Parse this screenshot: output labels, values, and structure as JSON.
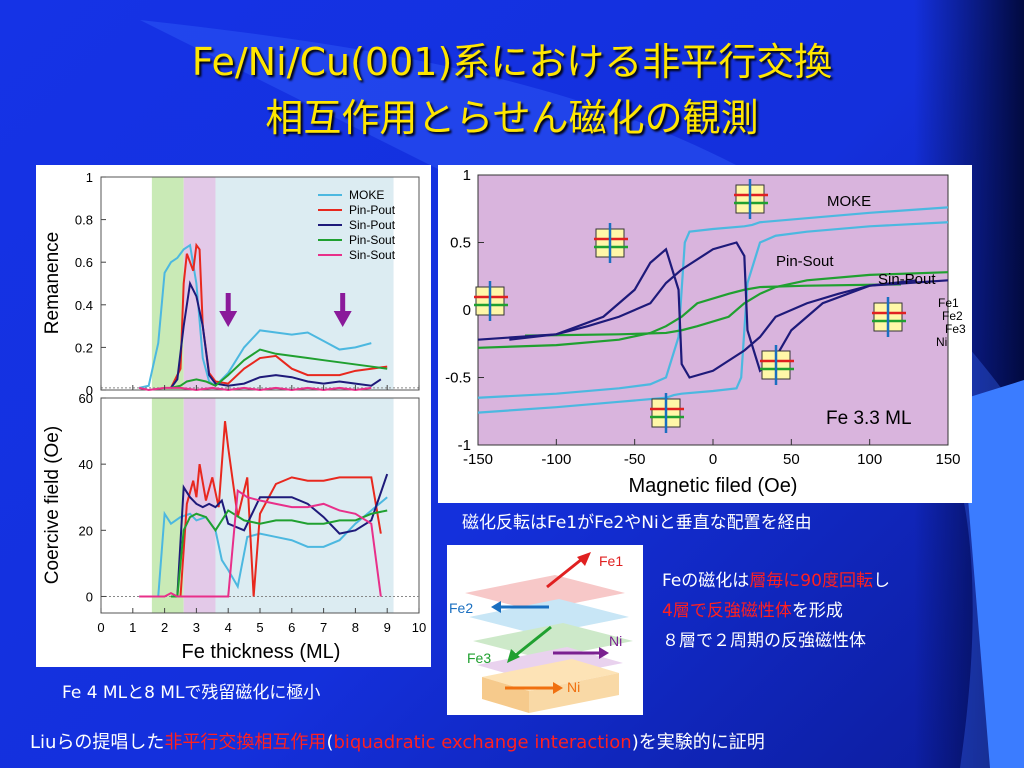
{
  "title": {
    "line1": "Fe/Ni/Cu(001)系における非平行交換",
    "line2": "相互作用とらせん磁化の観測"
  },
  "captions": {
    "left": "Fe 4 MLと8 MLで残留磁化に極小",
    "right_top": "磁化反転はFe1がFe2やNiと垂直な配置を経由",
    "fe_l1_a": "Feの磁化は",
    "fe_l1_b": "層毎に90度回転",
    "fe_l1_c": "し",
    "fe_l2_a": "4層で反強磁性体",
    "fe_l2_b": "を形成",
    "fe_l3": "８層で２周期の反強磁性体",
    "bottom_a": "Liuらの提唱した",
    "bottom_b": "非平行交換相互作用",
    "bottom_c": "(",
    "bottom_d": "biquadratic exchange interaction",
    "bottom_e": ")を実験的に証明"
  },
  "colors": {
    "MOKE": "#4cb8e0",
    "Pin-Pout": "#e8281e",
    "Sin-Pout": "#1e1a7a",
    "Pin-Sout": "#20a030",
    "Sin-Sout": "#e8308a",
    "accent_title": "#ffe600",
    "highlight": "#ff2020"
  },
  "chart_data": [
    {
      "type": "line",
      "xlabel": "Fe thickness  (ML)",
      "ylabel": "Remanence",
      "xlim": [
        0,
        10
      ],
      "ylim": [
        0,
        1
      ],
      "xticks": [
        "0",
        "1",
        "2",
        "3",
        "4",
        "5",
        "6",
        "7",
        "8",
        "9",
        "10"
      ],
      "yticks": [
        "0",
        "0.2",
        "0.4",
        "0.6",
        "0.8",
        "1"
      ],
      "legend": [
        "MOKE",
        "Pin-Pout",
        "Sin-Pout",
        "Pin-Sout",
        "Sin-Sout"
      ],
      "legend_position": "top-right",
      "shaded_regions": [
        {
          "range": [
            1.6,
            2.6
          ],
          "color": "green"
        },
        {
          "range": [
            2.6,
            3.6
          ],
          "color": "purple"
        },
        {
          "range": [
            3.6,
            9.2
          ],
          "color": "lightblue"
        }
      ],
      "arrows_at_x": [
        4,
        7.6
      ],
      "series": [
        {
          "name": "MOKE",
          "x": [
            1.2,
            1.5,
            1.8,
            2.0,
            2.2,
            2.4,
            2.6,
            2.8,
            3.0,
            3.2,
            3.4,
            3.6,
            4.0,
            4.5,
            5.0,
            5.5,
            6.0,
            6.5,
            7.0,
            7.5,
            8.0,
            8.5
          ],
          "y": [
            0.01,
            0.02,
            0.22,
            0.55,
            0.6,
            0.62,
            0.66,
            0.68,
            0.5,
            0.15,
            0.04,
            0.02,
            0.08,
            0.2,
            0.28,
            0.27,
            0.26,
            0.27,
            0.23,
            0.19,
            0.2,
            0.22
          ]
        },
        {
          "name": "Pin-Pout",
          "x": [
            2.2,
            2.5,
            2.6,
            2.7,
            2.8,
            2.9,
            3.0,
            3.1,
            3.2,
            3.4,
            3.6,
            4.0,
            4.5,
            5.0,
            5.5,
            6.0,
            6.5,
            7.0,
            7.5,
            8.0,
            8.5,
            9.0
          ],
          "y": [
            0.01,
            0.1,
            0.5,
            0.64,
            0.6,
            0.56,
            0.68,
            0.66,
            0.3,
            0.08,
            0.04,
            0.03,
            0.1,
            0.15,
            0.16,
            0.1,
            0.07,
            0.07,
            0.07,
            0.09,
            0.1,
            0.11
          ]
        },
        {
          "name": "Sin-Pout",
          "x": [
            2.2,
            2.4,
            2.6,
            2.8,
            3.0,
            3.2,
            3.4,
            3.6,
            4.0,
            4.5,
            5.0,
            5.5,
            6.0,
            6.5,
            7.0,
            7.5,
            8.0,
            8.5,
            8.8
          ],
          "y": [
            0.01,
            0.05,
            0.3,
            0.5,
            0.44,
            0.3,
            0.07,
            0.03,
            0.02,
            0.03,
            0.06,
            0.07,
            0.06,
            0.04,
            0.03,
            0.04,
            0.03,
            0.02,
            0.05
          ]
        },
        {
          "name": "Pin-Sout",
          "x": [
            2.2,
            2.5,
            2.7,
            3.0,
            3.3,
            3.6,
            4.0,
            4.5,
            5.0,
            5.5,
            6.0,
            6.5,
            7.0,
            7.5,
            8.0,
            8.5,
            9.0
          ],
          "y": [
            0.01,
            0.02,
            0.04,
            0.05,
            0.04,
            0.02,
            0.07,
            0.14,
            0.19,
            0.17,
            0.16,
            0.15,
            0.14,
            0.13,
            0.12,
            0.11,
            0.1
          ]
        },
        {
          "name": "Sin-Sout",
          "x": [
            1.2,
            1.5,
            2.0,
            2.5,
            3.0,
            3.5,
            4.0,
            4.5,
            5.0,
            5.5,
            6.0,
            6.5,
            7.0,
            7.5,
            8.0,
            8.5
          ],
          "y": [
            0.01,
            0.0,
            0.01,
            0.01,
            0.0,
            0.01,
            0.0,
            0.01,
            0.0,
            0.01,
            0.0,
            0.01,
            0.0,
            0.01,
            0.0,
            0.01
          ]
        }
      ]
    },
    {
      "type": "line",
      "xlabel": "Fe thickness  (ML)",
      "ylabel": "Coercive field   (Oe)",
      "xlim": [
        0,
        10
      ],
      "ylim": [
        -5,
        60
      ],
      "xticks": [
        "0",
        "1",
        "2",
        "3",
        "4",
        "5",
        "6",
        "7",
        "8",
        "9",
        "10"
      ],
      "yticks": [
        "0",
        "20",
        "40",
        "60"
      ],
      "series": [
        {
          "name": "MOKE",
          "x": [
            1.2,
            1.5,
            1.8,
            2.0,
            2.2,
            2.5,
            2.8,
            3.0,
            3.3,
            3.6,
            3.8,
            4.0,
            4.3,
            4.6,
            5.0,
            5.5,
            6.0,
            6.5,
            7.0,
            7.5,
            8.0,
            8.5,
            9.0
          ],
          "y": [
            0,
            0,
            0,
            25,
            22,
            24,
            25,
            23,
            24,
            20,
            11,
            8,
            3,
            18,
            19,
            18,
            17,
            15,
            15,
            17,
            22,
            26,
            30
          ]
        },
        {
          "name": "Pin-Pout",
          "x": [
            2.2,
            2.5,
            2.7,
            2.9,
            3.0,
            3.1,
            3.3,
            3.5,
            3.7,
            3.9,
            4.0,
            4.3,
            4.6,
            4.8,
            5.0,
            5.5,
            6.0,
            6.5,
            7.0,
            7.5,
            8.0,
            8.5,
            8.8
          ],
          "y": [
            0,
            0,
            28,
            35,
            30,
            40,
            29,
            36,
            27,
            53,
            45,
            24,
            36,
            0,
            25,
            34,
            36,
            35,
            35,
            36,
            36,
            36,
            19
          ]
        },
        {
          "name": "Sin-Pout",
          "x": [
            2.4,
            2.6,
            2.8,
            3.0,
            3.2,
            3.4,
            3.6,
            3.8,
            4.0,
            4.5,
            5.0,
            5.5,
            6.0,
            6.5,
            7.0,
            7.5,
            8.0,
            8.5,
            9.0
          ],
          "y": [
            0,
            33,
            30,
            28,
            27,
            28,
            27,
            29,
            22,
            20,
            30,
            30,
            30,
            28,
            24,
            19,
            20,
            23,
            37
          ]
        },
        {
          "name": "Pin-Sout",
          "x": [
            2.2,
            2.4,
            2.6,
            2.8,
            3.0,
            3.3,
            3.6,
            4.0,
            4.5,
            5.0,
            5.5,
            6.0,
            6.5,
            7.0,
            7.5,
            8.0,
            8.5,
            9.0
          ],
          "y": [
            0,
            0,
            20,
            24,
            25,
            24,
            20,
            26,
            23,
            22,
            23,
            23,
            22,
            22,
            23,
            23,
            25,
            26
          ]
        },
        {
          "name": "Sin-Sout",
          "x": [
            1.2,
            2.0,
            2.2,
            2.4,
            3.0,
            3.5,
            4.0,
            4.3,
            4.6,
            5.0,
            5.5,
            6.0,
            6.5,
            7.0,
            7.5,
            8.0,
            8.5,
            8.8
          ],
          "y": [
            0,
            0,
            1,
            0,
            0,
            0,
            0,
            32,
            30,
            29,
            28,
            27,
            27,
            28,
            26,
            25,
            22,
            0
          ]
        }
      ]
    },
    {
      "type": "line",
      "xlabel": "Magnetic filed    (Oe)",
      "ylabel": "",
      "xlim": [
        -150,
        150
      ],
      "ylim": [
        -1,
        1
      ],
      "xticks": [
        "-150",
        "-100",
        "-50",
        "0",
        "50",
        "100",
        "150"
      ],
      "yticks": [
        "-1",
        "-0.5",
        "0",
        "0.5",
        "1"
      ],
      "annotation": "Fe 3.3 ML",
      "series_labels": [
        "MOKE",
        "Pin-Sout",
        "Sin-Pout"
      ],
      "layer_labels": [
        "Fe1",
        "Fe2",
        "Fe3",
        "Ni"
      ],
      "series": [
        {
          "name": "MOKE",
          "x": [
            -150,
            -100,
            -60,
            -40,
            -30,
            -22,
            -18,
            -15,
            0,
            20,
            25,
            30,
            60,
            100,
            150
          ],
          "y": [
            -0.65,
            -0.62,
            -0.58,
            -0.55,
            -0.5,
            -0.2,
            0.5,
            0.58,
            0.6,
            0.62,
            0.63,
            0.65,
            0.68,
            0.72,
            0.76
          ]
        },
        {
          "name": "Pin-Sout",
          "x": [
            -120,
            -60,
            -30,
            -20,
            -10,
            10,
            20,
            30,
            40,
            60,
            100,
            150
          ],
          "y": [
            -0.19,
            -0.18,
            -0.17,
            -0.15,
            -0.12,
            -0.05,
            0.05,
            0.12,
            0.17,
            0.22,
            0.26,
            0.28
          ]
        },
        {
          "name": "Sin-Pout",
          "x": [
            -150,
            -100,
            -70,
            -50,
            -40,
            -30,
            -22,
            -20,
            -15,
            0,
            20,
            30,
            40,
            60,
            80,
            100,
            130
          ],
          "y": [
            -0.22,
            -0.18,
            -0.05,
            0.15,
            0.35,
            0.45,
            0.15,
            -0.4,
            -0.5,
            -0.45,
            -0.3,
            -0.2,
            -0.05,
            0.05,
            0.12,
            0.18,
            0.22
          ]
        }
      ]
    }
  ]
}
